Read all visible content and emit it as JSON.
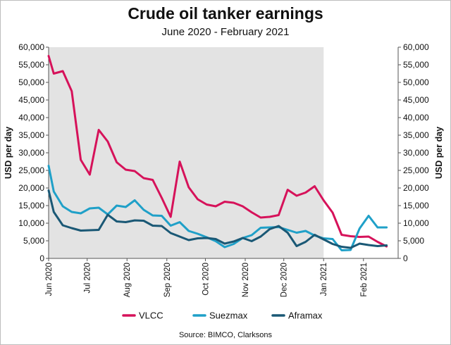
{
  "chart_data": {
    "type": "line",
    "title": "Crude oil tanker earnings",
    "subtitle": "June 2020 - February 2021",
    "ylabel": "USD per day",
    "ylabel_right": "USD per day",
    "ylim": [
      0,
      60000
    ],
    "yticks": [
      0,
      5000,
      10000,
      15000,
      20000,
      25000,
      30000,
      35000,
      40000,
      45000,
      50000,
      55000,
      60000
    ],
    "ytick_labels": [
      "0",
      "5,000",
      "10,000",
      "15,000",
      "20,000",
      "25,000",
      "30,000",
      "35,000",
      "40,000",
      "45,000",
      "50,000",
      "55,000",
      "60,000"
    ],
    "x_domain": [
      "2020-06-01",
      "2021-02-28"
    ],
    "xticks": [
      {
        "date": "2020-06-01",
        "label": "Jun 2020"
      },
      {
        "date": "2020-07-01",
        "label": "Jul 2020"
      },
      {
        "date": "2020-08-01",
        "label": "Aug 2020"
      },
      {
        "date": "2020-09-01",
        "label": "Sep 2020"
      },
      {
        "date": "2020-10-01",
        "label": "Oct 2020"
      },
      {
        "date": "2020-11-01",
        "label": "Nov 2020"
      },
      {
        "date": "2020-12-01",
        "label": "Dec 2020"
      },
      {
        "date": "2021-01-01",
        "label": "Jan 2021"
      },
      {
        "date": "2021-02-01",
        "label": "Feb 2021"
      }
    ],
    "shaded_region": [
      "2020-06-01",
      "2021-01-01"
    ],
    "grid": false,
    "legend": "bottom",
    "x": [
      "2020-06-01",
      "2020-06-05",
      "2020-06-12",
      "2020-06-19",
      "2020-06-26",
      "2020-07-03",
      "2020-07-10",
      "2020-07-17",
      "2020-07-24",
      "2020-07-31",
      "2020-08-07",
      "2020-08-14",
      "2020-08-21",
      "2020-08-28",
      "2020-09-04",
      "2020-09-11",
      "2020-09-18",
      "2020-09-25",
      "2020-10-02",
      "2020-10-09",
      "2020-10-16",
      "2020-10-23",
      "2020-10-30",
      "2020-11-06",
      "2020-11-13",
      "2020-11-20",
      "2020-11-27",
      "2020-12-04",
      "2020-12-11",
      "2020-12-18",
      "2020-12-25",
      "2021-01-01",
      "2021-01-08",
      "2021-01-15",
      "2021-01-22",
      "2021-01-29",
      "2021-02-05",
      "2021-02-12",
      "2021-02-19"
    ],
    "series": [
      {
        "name": "VLCC",
        "color": "#d6125a",
        "values": [
          57500,
          52500,
          53200,
          47500,
          28000,
          23800,
          36500,
          33200,
          27300,
          25200,
          24800,
          22800,
          22300,
          17200,
          11800,
          27500,
          20200,
          16800,
          15300,
          14800,
          16100,
          15800,
          14800,
          13100,
          11600,
          11800,
          12300,
          19500,
          17800,
          18700,
          20500,
          16500,
          13000,
          6700,
          6300,
          6100,
          6200,
          4700,
          3400
        ]
      },
      {
        "name": "Suezmax",
        "color": "#1fa0c8",
        "values": [
          26300,
          19000,
          14800,
          13200,
          12800,
          14200,
          14400,
          12500,
          15000,
          14600,
          16500,
          13800,
          12200,
          12100,
          9300,
          10300,
          7800,
          7000,
          6000,
          4900,
          3200,
          4100,
          5800,
          6600,
          8700,
          8800,
          8900,
          8100,
          7300,
          7800,
          6500,
          5700,
          5500,
          2300,
          2400,
          8500,
          12100,
          8800,
          8800
        ]
      },
      {
        "name": "Aframax",
        "color": "#1a5875",
        "values": [
          19300,
          13200,
          9400,
          8600,
          7900,
          8000,
          8100,
          12400,
          10500,
          10300,
          10800,
          10700,
          9300,
          9200,
          7200,
          6200,
          5200,
          5700,
          5800,
          5500,
          4200,
          4800,
          5800,
          4900,
          6200,
          8300,
          9200,
          7300,
          3500,
          4700,
          6700,
          5400,
          4100,
          3300,
          3000,
          4200,
          3800,
          3500,
          3700
        ]
      }
    ],
    "legend_entries": [
      "VLCC",
      "Suezmax",
      "Aframax"
    ]
  },
  "source": "Source: BIMCO, Clarksons"
}
